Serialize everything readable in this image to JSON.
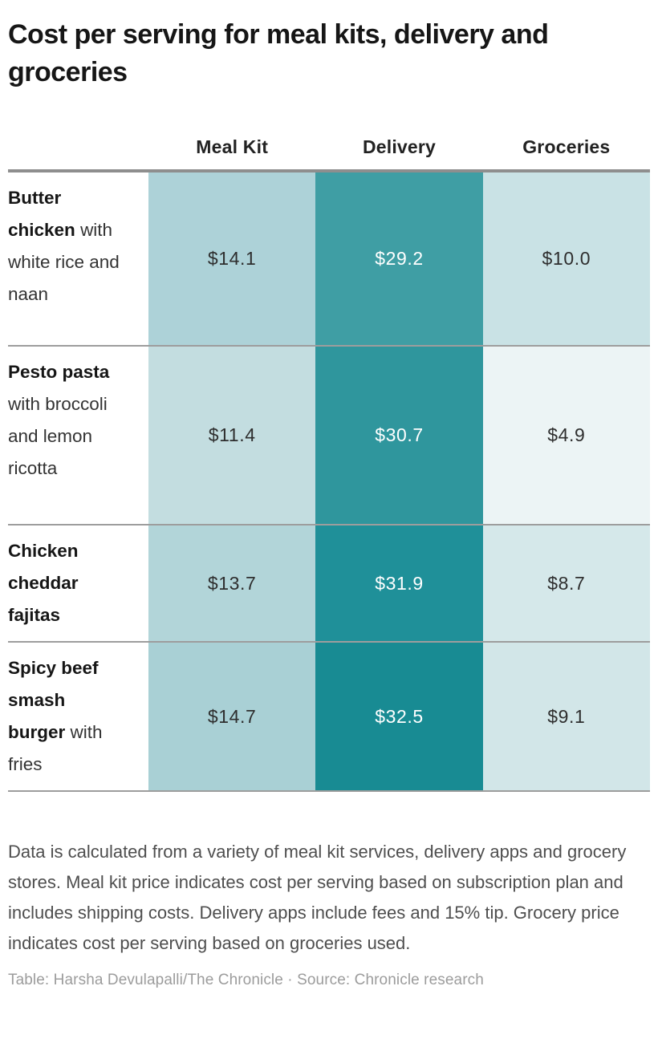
{
  "title": "Cost per serving for meal kits, delivery and groceries",
  "table": {
    "columns": [
      "Meal Kit",
      "Delivery",
      "Groceries"
    ],
    "rows": [
      {
        "name": "Butter chicken",
        "description": "with white rice and naan",
        "values": [
          "$14.1",
          "$29.2",
          "$10.0"
        ],
        "colors": [
          "#add2d8",
          "#3f9ea4",
          "#c9e2e5"
        ],
        "text_colors": [
          "#2e2e2e",
          "#ffffff",
          "#2e2e2e"
        ]
      },
      {
        "name": "Pesto pasta",
        "description": "with broccoli and lemon ricotta",
        "values": [
          "$11.4",
          "$30.7",
          "$4.9"
        ],
        "colors": [
          "#c3dde0",
          "#2f969d",
          "#ecf4f5"
        ],
        "text_colors": [
          "#2e2e2e",
          "#ffffff",
          "#2e2e2e"
        ]
      },
      {
        "name": "Chicken cheddar fajitas",
        "description": "",
        "values": [
          "$13.7",
          "$31.9",
          "$8.7"
        ],
        "colors": [
          "#b2d5d9",
          "#1f9099",
          "#d5e8ea"
        ],
        "text_colors": [
          "#2e2e2e",
          "#ffffff",
          "#2e2e2e"
        ]
      },
      {
        "name": "Spicy beef smash burger",
        "description": "with fries",
        "values": [
          "$14.7",
          "$32.5",
          "$9.1"
        ],
        "colors": [
          "#a9d0d5",
          "#188b93",
          "#d2e6e8"
        ],
        "text_colors": [
          "#2e2e2e",
          "#ffffff",
          "#2e2e2e"
        ]
      }
    ]
  },
  "notes": "Data is calculated from a variety of meal kit services, delivery apps and grocery stores. Meal kit price indicates cost per serving based on subscription plan and includes shipping costs. Delivery apps include fees and 15% tip. Grocery price indicates cost per serving based on groceries used.",
  "credit": "Table: Harsha Devulapalli/The Chronicle · Source: Chronicle research",
  "chart_data": {
    "type": "heatmap",
    "title": "Cost per serving for meal kits, delivery and groceries",
    "columns": [
      "Meal Kit",
      "Delivery",
      "Groceries"
    ],
    "rows": [
      "Butter chicken with white rice and naan",
      "Pesto pasta with broccoli and lemon ricotta",
      "Chicken cheddar fajitas",
      "Spicy beef smash burger with fries"
    ],
    "values_usd": [
      [
        14.1,
        29.2,
        10.0
      ],
      [
        11.4,
        30.7,
        4.9
      ],
      [
        13.7,
        31.9,
        8.7
      ],
      [
        14.7,
        32.5,
        9.1
      ]
    ],
    "unit": "USD per serving",
    "color_scale": {
      "min": 4.9,
      "max": 32.5,
      "low_color": "#ecf4f5",
      "high_color": "#188b93"
    },
    "legend_position": "none",
    "grid": "row-separators"
  }
}
